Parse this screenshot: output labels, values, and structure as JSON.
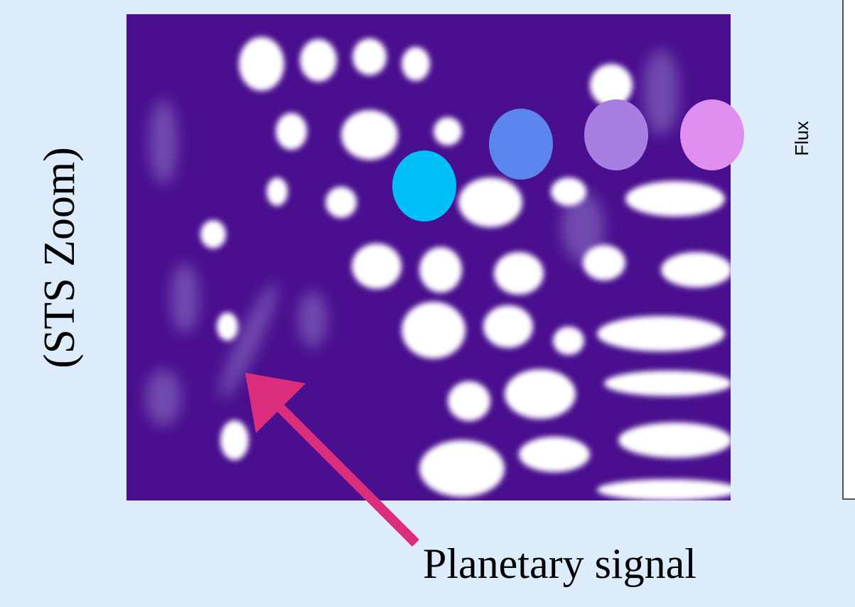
{
  "zoom_label": "(STS Zoom)",
  "annotation": "Planetary signal",
  "axis_label": "Flux"
}
